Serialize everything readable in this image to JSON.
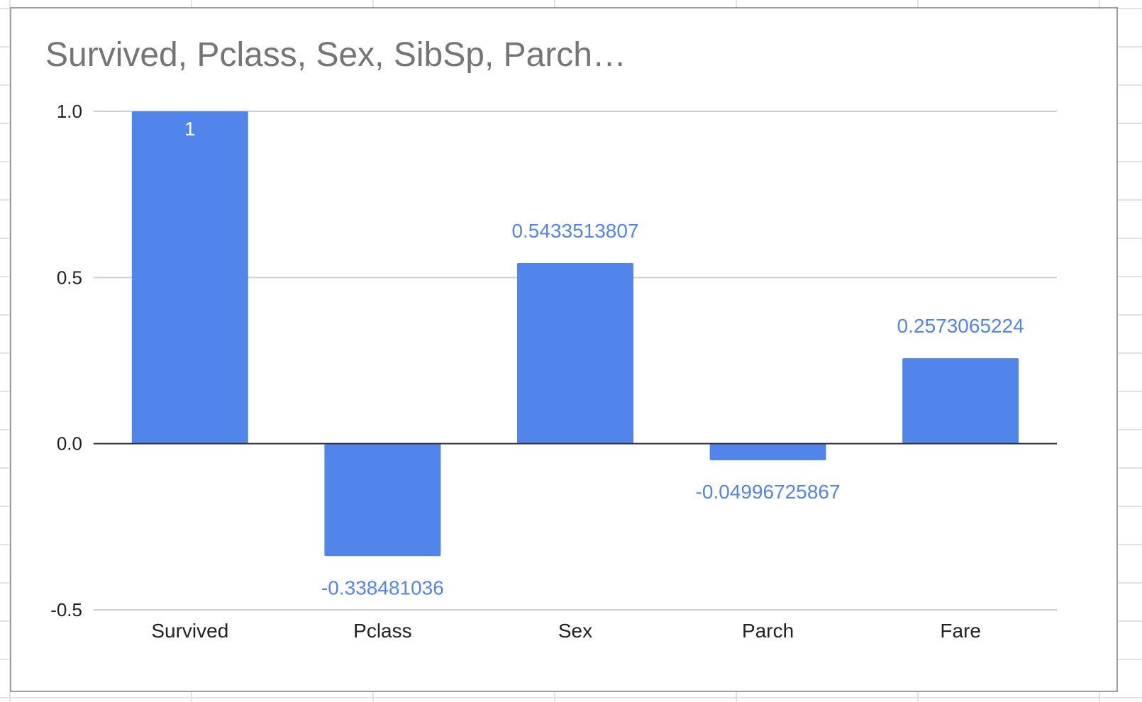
{
  "colors": {
    "bar": "#5185ec",
    "label_outside": "#5185ec",
    "label_inside": "#ffffff",
    "gridline": "#d0d0d0",
    "zero_line": "#333333"
  },
  "chart_data": {
    "type": "bar",
    "title": "Survived, Pclass, Sex, SibSp, Parch…",
    "xlabel": "",
    "ylabel": "",
    "categories": [
      "Survived",
      "Pclass",
      "Sex",
      "Parch",
      "Fare"
    ],
    "values": [
      1,
      -0.338481036,
      0.5433513807,
      -0.04996725867,
      0.2573065224
    ],
    "data_labels": [
      "1",
      "-0.338481036",
      "0.5433513807",
      "-0.04996725867",
      "0.2573065224"
    ],
    "ylim": [
      -0.5,
      1.0
    ],
    "yticks": [
      -0.5,
      0.0,
      0.5,
      1.0
    ],
    "ytick_labels": [
      "-0.5",
      "0.0",
      "0.5",
      "1.0"
    ],
    "grid": true,
    "legend": "none"
  }
}
